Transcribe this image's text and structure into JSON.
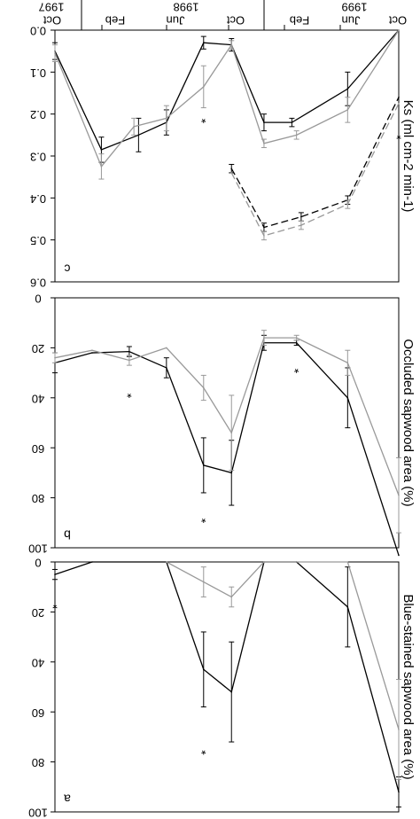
{
  "figure": {
    "time_axis": {
      "years": [
        "1997",
        "1998",
        "1999"
      ],
      "months": [
        "Oct",
        "Feb",
        "Jun",
        "Oct",
        "Feb",
        "Jun",
        "Oct"
      ]
    }
  },
  "colors": {
    "series_a": "#000000",
    "series_b": "#999999"
  },
  "chart_data": [
    {
      "type": "line",
      "panel_label": "c",
      "ylabel": "Ks (ml cm-2 min-1)",
      "ylim": [
        0,
        0.6
      ],
      "yticks": [
        "0.0",
        "0.1",
        "0.2",
        "0.3",
        "0.4",
        "0.5",
        "0.6"
      ],
      "series": [
        {
          "color": "#000000",
          "dash": false,
          "points": [
            {
              "x": 0,
              "y": 0.05,
              "err": 0.02
            },
            {
              "x": 1,
              "y": 0.285,
              "err": 0.03
            },
            {
              "x": 1.8,
              "y": 0.25,
              "err": 0.04
            },
            {
              "x": 2.4,
              "y": 0.22,
              "err": 0.03
            },
            {
              "x": 3.2,
              "y": 0.03,
              "err": 0.015
            },
            {
              "x": 3.8,
              "y": 0.035,
              "err": 0.015
            },
            {
              "x": 4.5,
              "y": 0.22,
              "err": 0.02
            },
            {
              "x": 5.1,
              "y": 0.22,
              "err": 0.01
            },
            {
              "x": 6.3,
              "y": 0.14,
              "err": 0.04
            },
            {
              "x": 7.4,
              "y": 0.0
            }
          ]
        },
        {
          "color": "#999999",
          "dash": false,
          "points": [
            {
              "x": 0,
              "y": 0.055,
              "err": 0.02
            },
            {
              "x": 1,
              "y": 0.325,
              "err": 0.03
            },
            {
              "x": 1.7,
              "y": 0.23,
              "err": 0.02
            },
            {
              "x": 2.4,
              "y": 0.21,
              "err": 0.03
            },
            {
              "x": 3.2,
              "y": 0.135,
              "err": 0.05
            },
            {
              "x": 3.8,
              "y": 0.035,
              "err": 0.01
            },
            {
              "x": 4.5,
              "y": 0.27,
              "err": 0.01
            },
            {
              "x": 5.2,
              "y": 0.25,
              "err": 0.01
            },
            {
              "x": 6.3,
              "y": 0.19,
              "err": 0.03
            },
            {
              "x": 7.4,
              "y": 0.0
            }
          ]
        },
        {
          "color": "#000000",
          "dash": true,
          "points": [
            {
              "x": 3.8,
              "y": 0.33,
              "err": 0.01
            },
            {
              "x": 4.5,
              "y": 0.47,
              "err": 0.01
            },
            {
              "x": 5.3,
              "y": 0.445,
              "err": 0.01
            },
            {
              "x": 6.3,
              "y": 0.405,
              "err": 0.01
            },
            {
              "x": 7.4,
              "y": 0.16
            }
          ]
        },
        {
          "color": "#999999",
          "dash": true,
          "points": [
            {
              "x": 3.8,
              "y": 0.34
            },
            {
              "x": 4.5,
              "y": 0.49,
              "err": 0.01
            },
            {
              "x": 5.3,
              "y": 0.465,
              "err": 0.01
            },
            {
              "x": 6.3,
              "y": 0.415,
              "err": 0.01
            },
            {
              "x": 7.4,
              "y": 0.175
            }
          ]
        }
      ],
      "asterisks": [
        {
          "x": 3.2,
          "y": 0.21
        },
        {
          "x": 7.4,
          "y": 0.25
        }
      ]
    },
    {
      "type": "line",
      "panel_label": "b",
      "ylabel": "Occluded sapwood area (%)",
      "ylim": [
        0,
        100
      ],
      "yticks": [
        "0",
        "20",
        "40",
        "60",
        "80",
        "100"
      ],
      "series": [
        {
          "color": "#000000",
          "dash": false,
          "points": [
            {
              "x": 0,
              "y": 26,
              "err": 4
            },
            {
              "x": 0.8,
              "y": 22
            },
            {
              "x": 1.6,
              "y": 21.5,
              "err": 2
            },
            {
              "x": 2.4,
              "y": 28,
              "err": 4
            },
            {
              "x": 3.2,
              "y": 67,
              "err": 11
            },
            {
              "x": 3.8,
              "y": 70,
              "err": 13
            },
            {
              "x": 4.5,
              "y": 18,
              "err": 3
            },
            {
              "x": 5.2,
              "y": 18,
              "err": 1
            },
            {
              "x": 6.3,
              "y": 40,
              "err": 12
            },
            {
              "x": 7.4,
              "y": 103
            }
          ]
        },
        {
          "color": "#999999",
          "dash": false,
          "points": [
            {
              "x": 0,
              "y": 24,
              "err": 2
            },
            {
              "x": 0.8,
              "y": 21
            },
            {
              "x": 1.6,
              "y": 25,
              "err": 2
            },
            {
              "x": 2.4,
              "y": 20
            },
            {
              "x": 3.2,
              "y": 36,
              "err": 5
            },
            {
              "x": 3.8,
              "y": 54,
              "err": 15
            },
            {
              "x": 4.5,
              "y": 16,
              "err": 3
            },
            {
              "x": 5.2,
              "y": 16,
              "err": 1
            },
            {
              "x": 6.3,
              "y": 26,
              "err": 5
            },
            {
              "x": 7.4,
              "y": 79,
              "err": 15
            }
          ]
        }
      ],
      "asterisks": [
        {
          "x": 1.6,
          "y": 38
        },
        {
          "x": 3.2,
          "y": 88
        },
        {
          "x": 5.2,
          "y": 28
        }
      ]
    },
    {
      "type": "line",
      "panel_label": "a",
      "ylabel": "Blue-stained sapwood area (%)",
      "ylim": [
        0,
        100
      ],
      "yticks": [
        "0",
        "20",
        "40",
        "60",
        "80",
        "100"
      ],
      "series": [
        {
          "color": "#000000",
          "dash": false,
          "points": [
            {
              "x": 0,
              "y": 5,
              "err": 2
            },
            {
              "x": 0.8,
              "y": 0
            },
            {
              "x": 2.4,
              "y": 0
            },
            {
              "x": 3.2,
              "y": 43,
              "err": 15
            },
            {
              "x": 3.8,
              "y": 52,
              "err": 20
            },
            {
              "x": 4.5,
              "y": 0
            },
            {
              "x": 5.2,
              "y": 0
            },
            {
              "x": 6.3,
              "y": 18,
              "err": 16
            },
            {
              "x": 7.4,
              "y": 92,
              "err": 6
            }
          ]
        },
        {
          "color": "#999999",
          "dash": false,
          "points": [
            {
              "x": 2.4,
              "y": 0
            },
            {
              "x": 3.2,
              "y": 8,
              "err": 6
            },
            {
              "x": 3.8,
              "y": 14,
              "err": 4
            },
            {
              "x": 4.5,
              "y": 0
            },
            {
              "x": 6.3,
              "y": 0
            },
            {
              "x": 7.4,
              "y": 67,
              "err": 20
            }
          ]
        }
      ],
      "asterisks": [
        {
          "x": 0,
          "y": 17
        },
        {
          "x": 3.2,
          "y": 75
        }
      ]
    }
  ]
}
